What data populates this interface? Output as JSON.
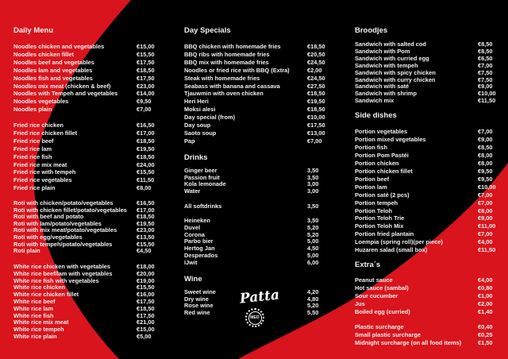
{
  "colors": {
    "red": "#d9141c",
    "black": "#000000",
    "text": "#f0f0f0"
  },
  "logo": {
    "script": "Patta",
    "seal": "MEO"
  },
  "columns": [
    {
      "sections": [
        {
          "title": "Daily Menu",
          "groups": [
            [
              [
                "Noodles chicken and vegetables",
                "€15,00"
              ],
              [
                "Noodles chicken fillet",
                "€15,50"
              ],
              [
                "Noodles beef and vegetables",
                "€17,50"
              ],
              [
                "Noodles lam and vegetables",
                "€18,50"
              ],
              [
                "Noodles fish and vegetables",
                "€17,50"
              ],
              [
                "Noodles mix meat (chicken & beef)",
                "€23,00"
              ],
              [
                "Noodles with Tempeh and vegetables",
                "€14,00"
              ],
              [
                "Noodles vegetables",
                "€9,50"
              ],
              [
                "Noodles plain",
                "€7,00"
              ]
            ],
            [
              [
                "Fried rice chicken",
                "€16,50"
              ],
              [
                "Fried rice chicken fillet",
                "€17,00"
              ],
              [
                "Fried rice beef",
                "€18,50"
              ],
              [
                "Fried rice lam",
                "€19,50"
              ],
              [
                "Fried rice fish",
                "€18,50"
              ],
              [
                "Fried rice mix meat",
                "€24,00"
              ],
              [
                "Fried rice with tempeh",
                "€15,50"
              ],
              [
                "Fried rice vegetables",
                "€11,50"
              ],
              [
                "Fried rice plain",
                "€8,00"
              ]
            ],
            [
              [
                "Roti with chicken/potato/vegetables",
                "€16,50"
              ],
              [
                "Roti with chicken fillet/potato/vegetables",
                "€17,00"
              ],
              [
                "Roti with beef and potato",
                "€18,50"
              ],
              [
                "Roti with lam/potato/vegetables",
                "€19,50"
              ],
              [
                "Roti with mix meat/potato/vegetables",
                "€23,00"
              ],
              [
                "Roti with egg/vegetables",
                "€13,50"
              ],
              [
                "Roti with tempeh/potato/vegetables",
                "€15,50"
              ],
              [
                "Roti plain",
                "€4,50"
              ]
            ],
            [
              [
                "White rice chicken with vegetables",
                "€18,00"
              ],
              [
                "White rice beef/lam with vegetables",
                "€20,00"
              ],
              [
                "White rice fish with vegetables",
                "€19,00"
              ],
              [
                "White rice chicken",
                "€15,50"
              ],
              [
                "White rice chicken fillet",
                "€16,00"
              ],
              [
                "White rice beef",
                "€17,50"
              ],
              [
                "White rice lam",
                "€18,50"
              ],
              [
                "White rice fish",
                "€17,50"
              ],
              [
                "White rice mix meat",
                "€21,00"
              ],
              [
                "White rice tempeh",
                "€15,00"
              ],
              [
                "White rice plain",
                "€5,00"
              ]
            ]
          ]
        }
      ]
    },
    {
      "sections": [
        {
          "title": "Day Specials",
          "groups": [
            [
              [
                "BBQ chicken with homemade fries",
                "€18,50"
              ],
              [
                "BBQ ribs with homemade fries",
                "€20,50"
              ],
              [
                "BBQ mix with homemade fries",
                "€24,50"
              ],
              [
                "Noodles or fried rice with BBQ (Extra)",
                "€2,00"
              ],
              [
                "Steak with homemade fries",
                "€24,50"
              ],
              [
                "Seabass with banana and cassava",
                "€27,50"
              ],
              [
                "Tjauwmin with oven chicken",
                "€18,50"
              ],
              [
                "Heri Heri",
                "€19,50"
              ],
              [
                "Moksi alesi",
                "€18,50"
              ],
              [
                "Day special (from)",
                "€10,00"
              ],
              [
                "Day soup",
                "€17,50"
              ],
              [
                "Saoto soup",
                "€13,00"
              ],
              [
                "Pap",
                "€7,00"
              ]
            ]
          ]
        },
        {
          "title": "Drinks",
          "groups": [
            [
              [
                "Ginger beer",
                "3,50"
              ],
              [
                "Passion fruit",
                "3,50"
              ],
              [
                "Kola lemonade",
                "3,00"
              ],
              [
                "Water",
                "3,00"
              ]
            ],
            [
              [
                "All softdrinks",
                "3,50"
              ]
            ],
            [
              [
                "Heineken",
                "3,50"
              ],
              [
                "Duvel",
                "5,20"
              ],
              [
                "Corona",
                "5,20"
              ],
              [
                "Parbo bier",
                "5,00"
              ],
              [
                "Hertog Jan",
                "4,50"
              ],
              [
                "Desperados",
                "5,00"
              ],
              [
                "IJwit",
                "6,00"
              ]
            ]
          ]
        },
        {
          "title": "Wine",
          "groups": [
            [
              [
                "Sweet wine",
                "4,20"
              ],
              [
                "Dry wine",
                "4,80"
              ],
              [
                "Rose wine",
                "5,20"
              ],
              [
                "Red wine",
                "5,50"
              ]
            ]
          ]
        }
      ]
    },
    {
      "sections": [
        {
          "title": "Broodjes",
          "groups": [
            [
              [
                "Sandwich with salted cod",
                "€8,50"
              ],
              [
                "Sandwich with Pom",
                "€8,50"
              ],
              [
                "Sandwich with curried egg",
                "€6,50"
              ],
              [
                "Sandwich with tempeh",
                "€7,00"
              ],
              [
                "Sandwich with spicy chicken",
                "€7,50"
              ],
              [
                "Sandwich with curry chicken",
                "€7,50"
              ],
              [
                "Sandwich with saté",
                "€9,00"
              ],
              [
                "Sandwich with shrimp",
                "€10,00"
              ],
              [
                "Sandwich mix",
                "€11,50"
              ]
            ]
          ]
        },
        {
          "title": "Side dishes",
          "groups": [
            [
              [
                "Portion vegetables",
                "€7,00"
              ],
              [
                "Portion mixed vegetables",
                "€9,00"
              ],
              [
                "Portion fish",
                "€8,50"
              ],
              [
                "Portion Pom Pastéi",
                "€8,00"
              ],
              [
                "Portion chicken",
                "€8,00"
              ],
              [
                "Portion chicken fillet",
                "€9,50"
              ],
              [
                "Portion beef",
                "€9,50"
              ],
              [
                "Portion lam",
                "€10,00"
              ],
              [
                "Portion saté (2 pcs)",
                "€7,00"
              ],
              [
                "Portion tempeh",
                "€7,00"
              ],
              [
                "Portion Teloh",
                "€8,00"
              ],
              [
                "Portion Teloh Trie",
                "€9,00"
              ],
              [
                "Portion Teloh Mix",
                "€11,00"
              ],
              [
                "Portion fried plantain",
                "€7,00"
              ],
              [
                "Loempia (spring roll)(per piece)",
                "€4,00"
              ],
              [
                "Huzaren salad (small box)",
                "€11,50"
              ]
            ]
          ]
        },
        {
          "title": "Extra´s",
          "groups": [
            [
              [
                "Peanut sauce",
                "€4,00"
              ],
              [
                "Hot sauce (sambal)",
                "€0,80"
              ],
              [
                "Sour cucumber",
                "€1,00"
              ],
              [
                "Jus",
                "€2,00"
              ],
              [
                "Boiled egg (curried)",
                "€1,40"
              ]
            ],
            [
              [
                "Plastic surcharge",
                "€0,40"
              ],
              [
                "Small plastic surcharge",
                "€0,25"
              ],
              [
                "Midnight surcharge (on all food items)",
                "€1,50"
              ]
            ]
          ]
        }
      ]
    }
  ]
}
